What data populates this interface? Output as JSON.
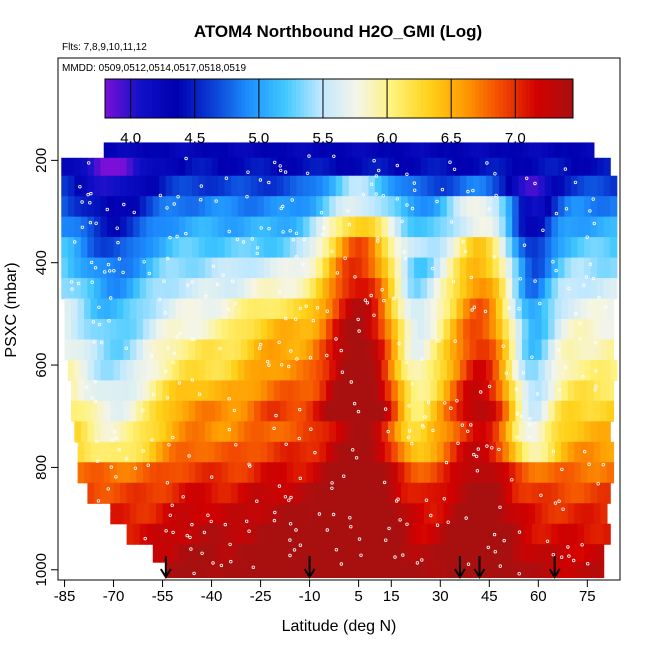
{
  "chart_data": {
    "type": "heatmap",
    "title": "ATOM4 Northbound H2O_GMI (Log)",
    "notes": {
      "flights": "Flts: 7,8,9,10,11,12",
      "dates": "MMDD: 0509,0512,0514,0517,0518,0519"
    },
    "xlabel": "Latitude (deg N)",
    "ylabel": "PSXC (mbar)",
    "x_ticks": [
      -85,
      -70,
      -55,
      -40,
      -25,
      -10,
      5,
      15,
      30,
      45,
      60,
      75
    ],
    "x_tick_labels": [
      "-85",
      "-70",
      "-55",
      "-40",
      "-25",
      "-10",
      "5",
      "15",
      "30",
      "45",
      "60",
      "75"
    ],
    "xlim": [
      -87,
      85
    ],
    "y_ticks": [
      200,
      400,
      600,
      800,
      1000
    ],
    "y_tick_labels": [
      "200",
      "400",
      "600",
      "800",
      "1000"
    ],
    "ylim": [
      1020,
      0
    ],
    "colorbar": {
      "range": [
        3.8,
        7.45
      ],
      "ticks": [
        4.0,
        4.5,
        5.0,
        5.5,
        6.0,
        6.5,
        7.0
      ],
      "tick_labels": [
        "4.0",
        "4.5",
        "5.0",
        "5.5",
        "6.0",
        "6.5",
        "7.0"
      ],
      "colors": [
        "#7a10d8",
        "#1010c8",
        "#0000b0",
        "#0a3fd6",
        "#1e90ff",
        "#40c8ff",
        "#bfe8ff",
        "#f5f5e8",
        "#fff27a",
        "#ffd21a",
        "#ff9a00",
        "#f24a00",
        "#d20000",
        "#a81010"
      ]
    },
    "pressure_levels": [
      180,
      210,
      250,
      290,
      330,
      370,
      410,
      450,
      490,
      530,
      570,
      610,
      650,
      690,
      730,
      770,
      810,
      850,
      890,
      930,
      970,
      1000
    ],
    "level_lat_ranges": [
      [
        -73,
        77
      ],
      [
        -86,
        81
      ],
      [
        -86,
        83
      ],
      [
        -86,
        83
      ],
      [
        -86,
        83
      ],
      [
        -86,
        83
      ],
      [
        -86,
        83
      ],
      [
        -86,
        83
      ],
      [
        -85,
        83
      ],
      [
        -85,
        83
      ],
      [
        -85,
        83
      ],
      [
        -84,
        83
      ],
      [
        -83,
        83
      ],
      [
        -83,
        83
      ],
      [
        -82,
        82
      ],
      [
        -81,
        82
      ],
      [
        -81,
        82
      ],
      [
        -78,
        81
      ],
      [
        -71,
        81
      ],
      [
        -66,
        81
      ],
      [
        -58,
        80
      ],
      [
        -54,
        80
      ]
    ],
    "base_profile": [
      {
        "p": 180,
        "v": 4.3
      },
      {
        "p": 220,
        "v": 4.45
      },
      {
        "p": 260,
        "v": 4.7
      },
      {
        "p": 300,
        "v": 4.95
      },
      {
        "p": 340,
        "v": 5.1
      },
      {
        "p": 380,
        "v": 5.3
      },
      {
        "p": 420,
        "v": 5.45
      },
      {
        "p": 460,
        "v": 5.6
      },
      {
        "p": 500,
        "v": 5.75
      },
      {
        "p": 540,
        "v": 5.85
      },
      {
        "p": 580,
        "v": 5.95
      },
      {
        "p": 620,
        "v": 6.05
      },
      {
        "p": 660,
        "v": 6.2
      },
      {
        "p": 700,
        "v": 6.35
      },
      {
        "p": 740,
        "v": 6.5
      },
      {
        "p": 780,
        "v": 6.65
      },
      {
        "p": 820,
        "v": 6.8
      },
      {
        "p": 860,
        "v": 6.95
      },
      {
        "p": 900,
        "v": 7.05
      },
      {
        "p": 940,
        "v": 7.15
      },
      {
        "p": 980,
        "v": 7.25
      },
      {
        "p": 1010,
        "v": 7.3
      }
    ],
    "moist_plumes": [
      {
        "lat": 5,
        "width": 12,
        "amplitude": 1.6,
        "top": 280
      },
      {
        "lat": 42,
        "width": 10,
        "amplitude": 1.1,
        "top": 300
      },
      {
        "lat": -20,
        "width": 14,
        "amplitude": 0.6,
        "top": 450
      },
      {
        "lat": -45,
        "width": 10,
        "amplitude": 0.35,
        "top": 600
      }
    ],
    "dry_regions": [
      {
        "lat": 58,
        "width": 7,
        "amplitude": -0.8,
        "top": 250,
        "bottom": 800
      },
      {
        "lat": -70,
        "width": 12,
        "amplitude": -0.6,
        "top": 200,
        "bottom": 800
      },
      {
        "lat": 22,
        "width": 6,
        "amplitude": -0.4,
        "top": 380,
        "bottom": 800
      }
    ],
    "arrow_latitudes": [
      -54,
      -10,
      36,
      42,
      65
    ]
  }
}
